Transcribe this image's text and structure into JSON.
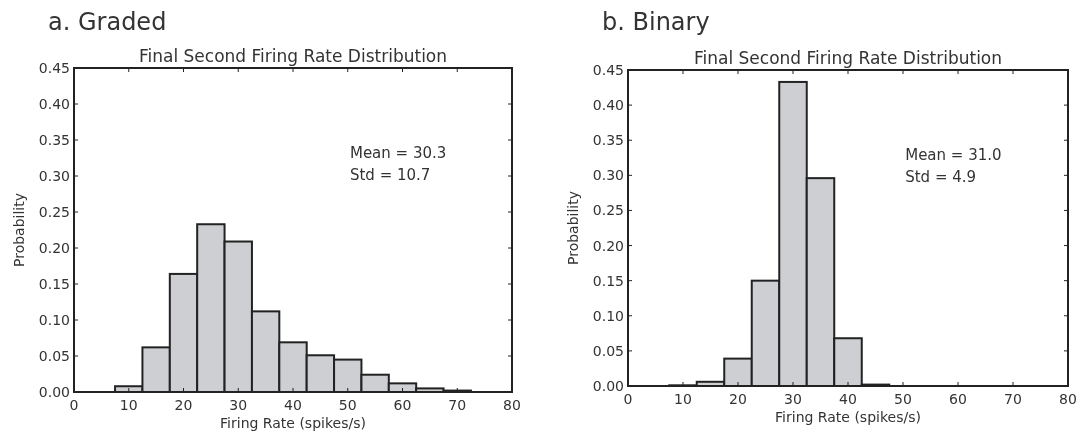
{
  "chart_data": [
    {
      "type": "histogram",
      "title": "a. Graded",
      "subtitle": "Final Second Firing Rate Distribution",
      "xlabel": "Firing Rate (spikes/s)",
      "ylabel": "Probability",
      "bins": [
        7.5,
        12.5,
        17.5,
        22.5,
        27.5,
        32.5,
        37.5,
        42.5,
        47.5,
        52.5,
        57.5,
        62.5,
        67.5,
        72.5
      ],
      "values": [
        0.008,
        0.062,
        0.164,
        0.233,
        0.209,
        0.112,
        0.069,
        0.051,
        0.045,
        0.024,
        0.012,
        0.005,
        0.002
      ],
      "color": "#cdcfd2",
      "xlim": [
        0,
        80
      ],
      "xticks": [
        0,
        10,
        20,
        30,
        40,
        50,
        60,
        70,
        80
      ],
      "ylim": [
        0,
        0.45
      ],
      "yticks": [
        {
          "value": 0,
          "label": "0.00"
        },
        {
          "value": 0.05,
          "label": "0.05"
        },
        {
          "value": 0.1,
          "label": "0.10"
        },
        {
          "value": 0.15,
          "label": "0.15"
        },
        {
          "value": 0.2,
          "label": "0.20"
        },
        {
          "value": 0.25,
          "label": "0.25"
        },
        {
          "value": 0.3,
          "label": "0.30"
        },
        {
          "value": 0.35,
          "label": "0.35"
        },
        {
          "value": 0.4,
          "label": "0.40"
        },
        {
          "value": 0.45,
          "label": "0.45"
        }
      ],
      "annotations": [
        "Mean = 30.3",
        "Std = 10.7"
      ]
    },
    {
      "type": "histogram",
      "title": "b. Binary",
      "subtitle": "Final Second Firing Rate Distribution",
      "xlabel": "Firing Rate (spikes/s)",
      "ylabel": "Probability",
      "bins": [
        7.5,
        12.5,
        17.5,
        22.5,
        27.5,
        32.5,
        37.5,
        42.5,
        47.5
      ],
      "values": [
        0.001,
        0.006,
        0.039,
        0.15,
        0.433,
        0.296,
        0.068,
        0.002
      ],
      "color": "#cdcfd2",
      "xlim": [
        0,
        80
      ],
      "xticks": [
        0,
        10,
        20,
        30,
        40,
        50,
        60,
        70,
        80
      ],
      "ylim": [
        0,
        0.45
      ],
      "yticks": [
        {
          "value": 0,
          "label": "0.00"
        },
        {
          "value": 0.05,
          "label": "0.05"
        },
        {
          "value": 0.1,
          "label": "0.10"
        },
        {
          "value": 0.15,
          "label": "0.15"
        },
        {
          "value": 0.2,
          "label": "0.20"
        },
        {
          "value": 0.25,
          "label": "0.25"
        },
        {
          "value": 0.3,
          "label": "0.30"
        },
        {
          "value": 0.35,
          "label": "0.35"
        },
        {
          "value": 0.4,
          "label": "0.40"
        },
        {
          "value": 0.45,
          "label": "0.45"
        }
      ],
      "annotations": [
        "Mean = 31.0",
        "Std = 4.9"
      ]
    }
  ]
}
